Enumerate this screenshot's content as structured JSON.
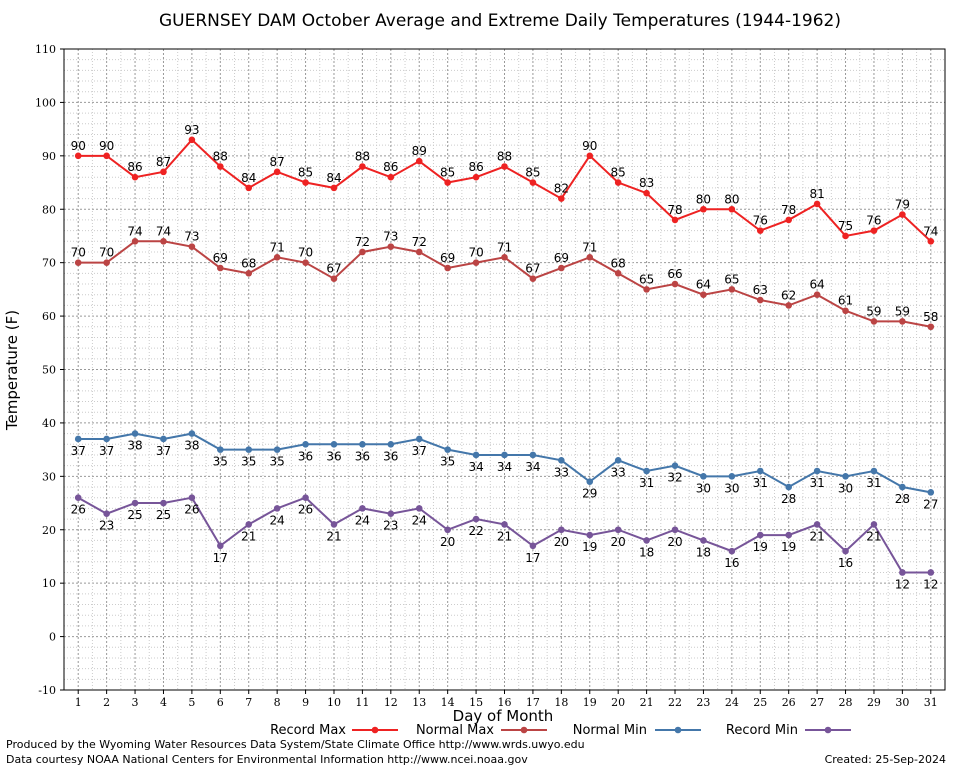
{
  "colors": {
    "record_max": "#ee2222",
    "normal_max": "#bb4444",
    "normal_min": "#4477aa",
    "record_min": "#775599",
    "grid_major": "#999999",
    "grid_minor": "#cccccc"
  },
  "footer": {
    "line1": "Produced by the Wyoming Water Resources Data System/State Climate Office http://www.wrds.uwyo.edu",
    "line2": "Data courtesy NOAA National Centers for Environmental Information http://www.ncei.noaa.gov",
    "created": "Created:  25-Sep-2024"
  },
  "chart_data": {
    "type": "line",
    "title": "GUERNSEY DAM October Average and Extreme Daily Temperatures (1944-1962)",
    "xlabel": "Day of Month",
    "ylabel": "Temperature (F)",
    "x": [
      1,
      2,
      3,
      4,
      5,
      6,
      7,
      8,
      9,
      10,
      11,
      12,
      13,
      14,
      15,
      16,
      17,
      18,
      19,
      20,
      21,
      22,
      23,
      24,
      25,
      26,
      27,
      28,
      29,
      30,
      31
    ],
    "xlim": [
      0.5,
      31.5
    ],
    "ylim": [
      -10,
      110
    ],
    "yticks": [
      -10,
      0,
      10,
      20,
      30,
      40,
      50,
      60,
      70,
      80,
      90,
      100,
      110
    ],
    "grid": true,
    "legend_position": "bottom",
    "series": [
      {
        "name": "Record Max",
        "label_position": "above",
        "values": [
          90,
          90,
          86,
          87,
          93,
          88,
          84,
          87,
          85,
          84,
          88,
          86,
          89,
          85,
          86,
          88,
          85,
          82,
          90,
          85,
          83,
          78,
          80,
          80,
          76,
          78,
          81,
          75,
          76,
          79,
          74
        ]
      },
      {
        "name": "Normal Max",
        "label_position": "above",
        "values": [
          70,
          70,
          74,
          74,
          73,
          69,
          68,
          71,
          70,
          67,
          72,
          73,
          72,
          69,
          70,
          71,
          67,
          69,
          71,
          68,
          65,
          66,
          64,
          65,
          63,
          62,
          64,
          61,
          59,
          59,
          58
        ]
      },
      {
        "name": "Normal Min",
        "label_position": "below",
        "values": [
          37,
          37,
          38,
          37,
          38,
          35,
          35,
          35,
          36,
          36,
          36,
          36,
          37,
          35,
          34,
          34,
          34,
          33,
          29,
          33,
          31,
          32,
          30,
          30,
          31,
          28,
          31,
          30,
          31,
          28,
          27
        ]
      },
      {
        "name": "Record Min",
        "label_position": "below",
        "values": [
          26,
          23,
          25,
          25,
          26,
          17,
          21,
          24,
          26,
          21,
          24,
          23,
          24,
          20,
          22,
          21,
          17,
          20,
          19,
          20,
          18,
          20,
          18,
          16,
          19,
          19,
          21,
          16,
          21,
          12,
          12
        ]
      }
    ]
  }
}
